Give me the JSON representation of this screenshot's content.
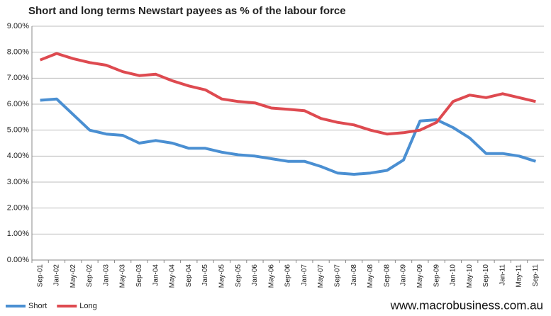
{
  "chart_data": {
    "type": "line",
    "title": "Short and long terms Newstart payees as % of the labour force",
    "annotation": "www.macrobusiness.com.au",
    "categories": [
      "Sep-01",
      "Jan-02",
      "May-02",
      "Sep-02",
      "Jan-03",
      "May-03",
      "Sep-03",
      "Jan-04",
      "May-04",
      "Sep-04",
      "Jan-05",
      "May-05",
      "Sep-05",
      "Jan-06",
      "May-06",
      "Sep-06",
      "Jan-07",
      "May-07",
      "Sep-07",
      "Jan-08",
      "May-08",
      "Sep-08",
      "Jan-09",
      "May-09",
      "Sep-09",
      "Jan-10",
      "May-10",
      "Sep-10",
      "Jan-11",
      "May-11",
      "Sep-11"
    ],
    "series": [
      {
        "name": "Short",
        "color": "#4a8fd2",
        "values": [
          6.15,
          6.2,
          5.6,
          5.0,
          4.85,
          4.8,
          4.5,
          4.6,
          4.5,
          4.3,
          4.3,
          4.15,
          4.05,
          4.0,
          3.9,
          3.8,
          3.8,
          3.6,
          3.35,
          3.3,
          3.35,
          3.45,
          3.85,
          5.35,
          5.4,
          5.1,
          4.7,
          4.1,
          4.1,
          4.0,
          3.8
        ]
      },
      {
        "name": "Long",
        "color": "#de4a50",
        "values": [
          7.7,
          7.95,
          7.75,
          7.6,
          7.5,
          7.25,
          7.1,
          7.15,
          6.9,
          6.7,
          6.55,
          6.2,
          6.1,
          6.05,
          5.85,
          5.8,
          5.75,
          5.45,
          5.3,
          5.2,
          5.0,
          4.85,
          4.9,
          5.0,
          5.3,
          6.1,
          6.35,
          6.25,
          6.4,
          6.25,
          6.1
        ]
      }
    ],
    "ylim": [
      0,
      9
    ],
    "yticks": [
      {
        "value": 0,
        "label": "0.00%"
      },
      {
        "value": 1,
        "label": "1.00%"
      },
      {
        "value": 2,
        "label": "2.00%"
      },
      {
        "value": 3,
        "label": "3.00%"
      },
      {
        "value": 4,
        "label": "4.00%"
      },
      {
        "value": 5,
        "label": "5.00%"
      },
      {
        "value": 6,
        "label": "6.00%"
      },
      {
        "value": 7,
        "label": "7.00%"
      },
      {
        "value": 8,
        "label": "8.00%"
      },
      {
        "value": 9,
        "label": "9.00%"
      }
    ],
    "grid": true,
    "legend": "bottom-left"
  }
}
